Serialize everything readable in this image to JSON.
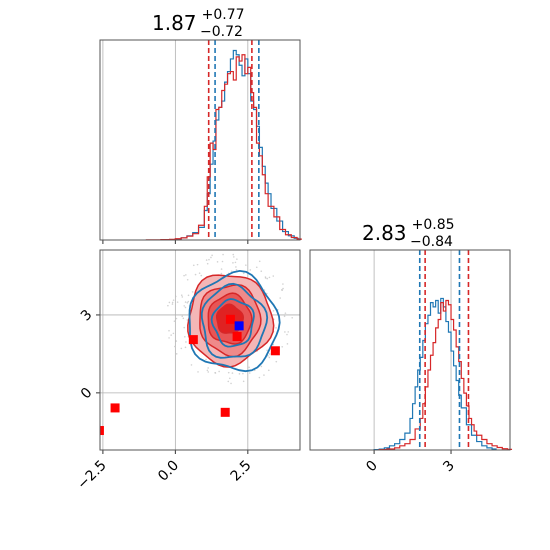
{
  "chart_data": {
    "type": "corner",
    "colors": {
      "red": "#d62728",
      "blue": "#1f77b4",
      "light_red": "#f2a8a8",
      "marker_blue": "#0000ff",
      "marker_red": "#ff0000",
      "scatter_grey": "#bfbfbf"
    },
    "grid": true,
    "param1": {
      "median": 1.87,
      "plus": "+0.77",
      "minus": "−0.72",
      "title_main": "1.87",
      "range": [
        -2.6,
        4.3
      ],
      "ticks": [
        -2.5,
        0.0,
        2.5
      ],
      "tick_labels": [
        "−2.5",
        "0.0",
        "2.5"
      ],
      "quantiles_red": [
        1.15,
        2.64
      ],
      "quantiles_blue": [
        1.37,
        2.88
      ],
      "hist_red": [
        [
          -1.0,
          0.1
        ],
        [
          -0.5,
          0.2
        ],
        [
          -0.2,
          0.3
        ],
        [
          0.0,
          0.6
        ],
        [
          0.2,
          1.0
        ],
        [
          0.4,
          1.8
        ],
        [
          0.6,
          3.0
        ],
        [
          0.8,
          7.0
        ],
        [
          1.0,
          16.0
        ],
        [
          1.1,
          30.0
        ],
        [
          1.2,
          46.0
        ],
        [
          1.3,
          43.0
        ],
        [
          1.4,
          62.0
        ],
        [
          1.5,
          63.0
        ],
        [
          1.6,
          71.0
        ],
        [
          1.7,
          74.0
        ],
        [
          1.8,
          79.0
        ],
        [
          1.9,
          80.0
        ],
        [
          2.0,
          76.0
        ],
        [
          2.1,
          87.0
        ],
        [
          2.2,
          85.0
        ],
        [
          2.3,
          88.0
        ],
        [
          2.4,
          79.0
        ],
        [
          2.5,
          82.0
        ],
        [
          2.6,
          70.0
        ],
        [
          2.7,
          63.0
        ],
        [
          2.8,
          46.0
        ],
        [
          2.9,
          40.0
        ],
        [
          3.0,
          31.0
        ],
        [
          3.1,
          22.0
        ],
        [
          3.2,
          16.0
        ],
        [
          3.4,
          11.0
        ],
        [
          3.6,
          5.0
        ],
        [
          3.8,
          2.5
        ],
        [
          4.0,
          1.2
        ],
        [
          4.2,
          0.5
        ]
      ],
      "hist_blue": [
        [
          -0.2,
          0.2
        ],
        [
          0.0,
          0.5
        ],
        [
          0.2,
          1.0
        ],
        [
          0.4,
          2.0
        ],
        [
          0.6,
          3.5
        ],
        [
          0.8,
          6.0
        ],
        [
          1.0,
          14.0
        ],
        [
          1.1,
          22.0
        ],
        [
          1.2,
          36.0
        ],
        [
          1.3,
          47.0
        ],
        [
          1.4,
          57.0
        ],
        [
          1.5,
          63.0
        ],
        [
          1.6,
          66.0
        ],
        [
          1.7,
          75.0
        ],
        [
          1.8,
          80.0
        ],
        [
          1.9,
          86.0
        ],
        [
          2.0,
          90.0
        ],
        [
          2.1,
          88.0
        ],
        [
          2.2,
          83.0
        ],
        [
          2.3,
          78.0
        ],
        [
          2.4,
          86.0
        ],
        [
          2.5,
          79.0
        ],
        [
          2.6,
          66.0
        ],
        [
          2.7,
          62.0
        ],
        [
          2.8,
          54.0
        ],
        [
          2.9,
          44.0
        ],
        [
          3.0,
          35.0
        ],
        [
          3.1,
          27.0
        ],
        [
          3.2,
          22.0
        ],
        [
          3.3,
          15.0
        ],
        [
          3.5,
          9.0
        ],
        [
          3.7,
          4.0
        ],
        [
          3.9,
          2.0
        ],
        [
          4.1,
          0.8
        ]
      ]
    },
    "param2": {
      "median": 2.83,
      "plus": "+0.85",
      "minus": "−0.84",
      "title_main": "2.83",
      "range": [
        -2.5,
        5.3
      ],
      "ticks": [
        0,
        3
      ],
      "tick_labels": [
        "0",
        "3"
      ],
      "quantiles_red": [
        1.99,
        3.68
      ],
      "quantiles_blue": [
        1.78,
        3.33
      ],
      "hist_red": [
        [
          0.2,
          0.2
        ],
        [
          0.5,
          0.5
        ],
        [
          0.8,
          1.0
        ],
        [
          1.0,
          2.0
        ],
        [
          1.2,
          3.0
        ],
        [
          1.4,
          5.0
        ],
        [
          1.6,
          10.0
        ],
        [
          1.8,
          15.0
        ],
        [
          1.9,
          22.0
        ],
        [
          2.0,
          30.0
        ],
        [
          2.1,
          38.0
        ],
        [
          2.2,
          45.0
        ],
        [
          2.3,
          51.0
        ],
        [
          2.4,
          58.0
        ],
        [
          2.5,
          62.0
        ],
        [
          2.6,
          70.0
        ],
        [
          2.7,
          66.0
        ],
        [
          2.8,
          71.0
        ],
        [
          2.9,
          69.0
        ],
        [
          3.0,
          62.0
        ],
        [
          3.1,
          57.0
        ],
        [
          3.2,
          49.0
        ],
        [
          3.3,
          42.0
        ],
        [
          3.4,
          34.0
        ],
        [
          3.5,
          27.0
        ],
        [
          3.6,
          21.0
        ],
        [
          3.7,
          15.0
        ],
        [
          3.8,
          12.0
        ],
        [
          3.9,
          9.0
        ],
        [
          4.0,
          7.0
        ],
        [
          4.2,
          5.0
        ],
        [
          4.4,
          3.0
        ],
        [
          4.6,
          2.0
        ],
        [
          4.8,
          1.2
        ],
        [
          5.0,
          0.6
        ],
        [
          5.2,
          0.3
        ]
      ],
      "hist_blue": [
        [
          0.0,
          0.2
        ],
        [
          0.2,
          0.4
        ],
        [
          0.4,
          1.0
        ],
        [
          0.6,
          2.0
        ],
        [
          0.8,
          3.0
        ],
        [
          1.0,
          5.0
        ],
        [
          1.2,
          8.0
        ],
        [
          1.4,
          15.0
        ],
        [
          1.5,
          22.0
        ],
        [
          1.6,
          30.0
        ],
        [
          1.7,
          38.0
        ],
        [
          1.8,
          44.0
        ],
        [
          1.9,
          52.0
        ],
        [
          2.0,
          60.0
        ],
        [
          2.1,
          64.0
        ],
        [
          2.2,
          70.0
        ],
        [
          2.3,
          68.0
        ],
        [
          2.4,
          71.0
        ],
        [
          2.5,
          65.0
        ],
        [
          2.6,
          72.0
        ],
        [
          2.7,
          68.0
        ],
        [
          2.8,
          61.0
        ],
        [
          2.9,
          56.0
        ],
        [
          3.0,
          47.0
        ],
        [
          3.1,
          40.0
        ],
        [
          3.2,
          33.0
        ],
        [
          3.3,
          26.0
        ],
        [
          3.4,
          20.0
        ],
        [
          3.6,
          12.0
        ],
        [
          3.8,
          7.0
        ],
        [
          4.0,
          4.0
        ],
        [
          4.2,
          2.0
        ],
        [
          4.4,
          1.0
        ],
        [
          4.6,
          0.5
        ]
      ]
    },
    "scatter2d": {
      "center_red": [
        1.87,
        2.83
      ],
      "center_blue": [
        2.0,
        2.7
      ],
      "contours_red": [
        {
          "rx": 1.45,
          "ry": 1.75,
          "fill": "#f4b6b6"
        },
        {
          "rx": 1.05,
          "ry": 1.35,
          "fill": "#ef8a8a"
        },
        {
          "rx": 0.75,
          "ry": 0.95,
          "fill": "#e85555"
        },
        {
          "rx": 0.45,
          "ry": 0.55,
          "fill": "#e02222"
        }
      ],
      "contours_blue": [
        {
          "rx": 1.55,
          "ry": 1.85
        },
        {
          "rx": 1.1,
          "ry": 1.4
        },
        {
          "rx": 0.7,
          "ry": 0.9
        }
      ],
      "markers_red": [
        [
          0.62,
          2.05
        ],
        [
          1.9,
          2.83
        ],
        [
          2.13,
          2.17
        ],
        [
          3.45,
          1.62
        ],
        [
          -2.08,
          -0.58
        ],
        [
          1.72,
          -0.75
        ],
        [
          -2.62,
          -1.45
        ]
      ],
      "markers_blue": [
        [
          2.2,
          2.58
        ]
      ]
    }
  }
}
